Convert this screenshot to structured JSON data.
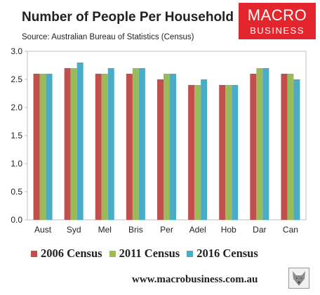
{
  "header": {
    "title": "Number of People Per Household",
    "source": "Source: Australian Bureau of Statistics (Census)"
  },
  "logo": {
    "line1": "MACRO",
    "line2": "BUSINESS",
    "color": "#e3262d"
  },
  "footer": {
    "url": "www.macrobusiness.com.au"
  },
  "chart_data": {
    "type": "bar",
    "categories": [
      "Aust",
      "Syd",
      "Mel",
      "Bris",
      "Per",
      "Adel",
      "Hob",
      "Dar",
      "Can"
    ],
    "series": [
      {
        "name": "2006 Census",
        "color": "#c0504d",
        "values": [
          2.6,
          2.7,
          2.6,
          2.6,
          2.5,
          2.4,
          2.4,
          2.6,
          2.6
        ]
      },
      {
        "name": "2011 Census",
        "color": "#9bbb59",
        "values": [
          2.6,
          2.7,
          2.6,
          2.7,
          2.6,
          2.4,
          2.4,
          2.7,
          2.6
        ]
      },
      {
        "name": "2016 Census",
        "color": "#4bacc6",
        "values": [
          2.6,
          2.8,
          2.7,
          2.7,
          2.6,
          2.5,
          2.4,
          2.7,
          2.5
        ]
      }
    ],
    "yticks": [
      "0.0",
      "0.5",
      "1.0",
      "1.5",
      "2.0",
      "2.5",
      "3.0"
    ],
    "ylim": [
      0,
      3
    ],
    "grid": false,
    "legend_position": "bottom"
  }
}
